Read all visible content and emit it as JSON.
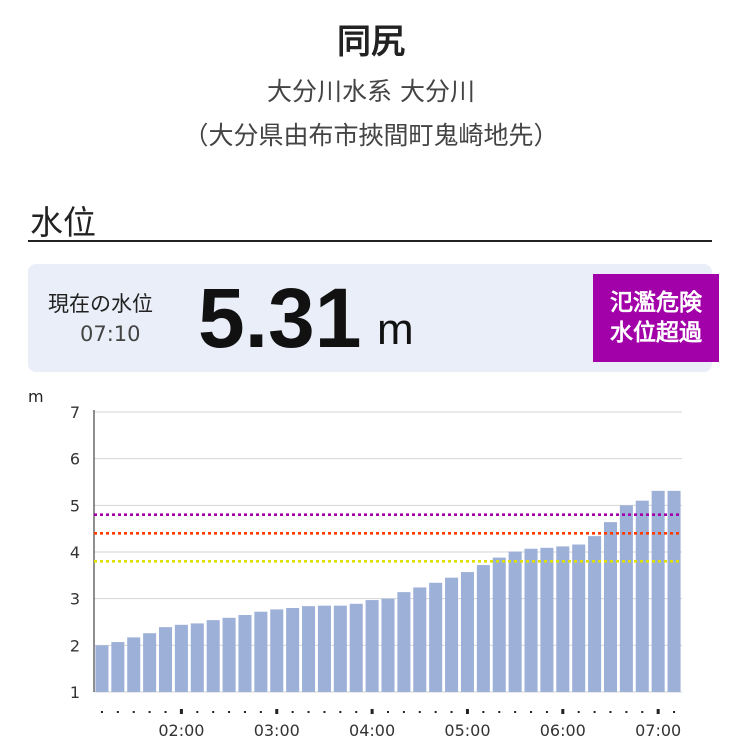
{
  "header": {
    "station": "同尻",
    "river": "大分川水系 大分川",
    "location": "（大分県由布市挾間町鬼崎地先）"
  },
  "section": {
    "title": "水位"
  },
  "current": {
    "label": "現在の水位",
    "time": "07:10",
    "value": "5.31",
    "unit": "m",
    "status_line1": "氾濫危険",
    "status_line2": "水位超過",
    "status_color": "#a200a8"
  },
  "chart_data": {
    "type": "bar",
    "y_unit_label": "m",
    "ylim": [
      1,
      7
    ],
    "yticks": [
      1,
      2,
      3,
      4,
      5,
      6,
      7
    ],
    "grid": true,
    "bar_color": "#9db0d8",
    "values": [
      2.0,
      2.07,
      2.17,
      2.26,
      2.39,
      2.44,
      2.47,
      2.54,
      2.59,
      2.65,
      2.72,
      2.77,
      2.8,
      2.84,
      2.85,
      2.85,
      2.89,
      2.97,
      3.0,
      3.14,
      3.24,
      3.34,
      3.45,
      3.57,
      3.72,
      3.88,
      4.01,
      4.07,
      4.09,
      4.12,
      4.16,
      4.34,
      4.64,
      5.0,
      5.1,
      5.31,
      5.31
    ],
    "x_tick_labels": [
      "02:00",
      "03:00",
      "04:00",
      "05:00",
      "06:00",
      "07:00"
    ],
    "x_tick_bar_index": [
      5,
      11,
      17,
      23,
      29,
      35
    ],
    "threshold_lines": [
      {
        "value": 4.8,
        "color": "#a200a8"
      },
      {
        "value": 4.4,
        "color": "#ff3c00"
      },
      {
        "value": 3.8,
        "color": "#e0e000"
      }
    ]
  }
}
